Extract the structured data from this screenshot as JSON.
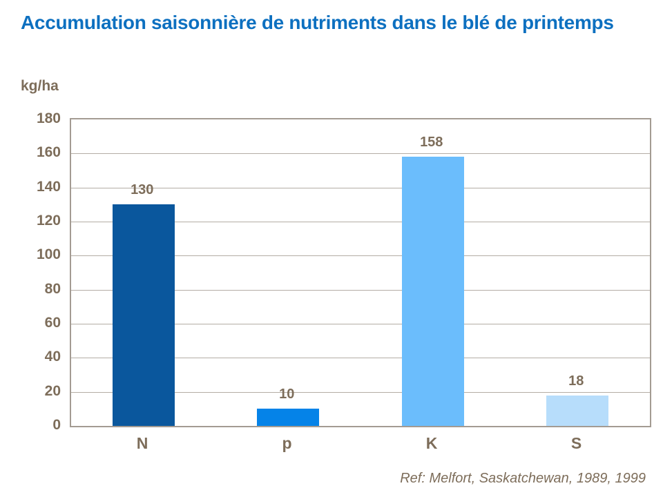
{
  "slide": {
    "title": "Accumulation saisonnière de nutriments dans le blé de printemps",
    "ref_text": "Ref: Melfort, Saskatchewan, 1989, 1999"
  },
  "colors": {
    "title-blue": "#0d70c0",
    "chart-text": "#7d6d5a",
    "grid-line": "#b3aca4",
    "plot-border": "#a39b92"
  },
  "chart_data": {
    "type": "bar",
    "title": "Accumulation saisonnière de nutriments dans le blé de printemps",
    "categories": [
      "N",
      "p",
      "K",
      "S"
    ],
    "values": [
      130,
      10,
      158,
      18
    ],
    "bar_colors": [
      "#0a579d",
      "#0583e8",
      "#6bbdfc",
      "#b7ddfb"
    ],
    "ylabel": "kg/ha",
    "xlabel": "",
    "ylim": [
      0,
      180
    ],
    "ytick_step": 20,
    "grid": true,
    "legend": false,
    "value_labels_shown": true,
    "footnote": "Ref: Melfort, Saskatchewan, 1989, 1999"
  }
}
